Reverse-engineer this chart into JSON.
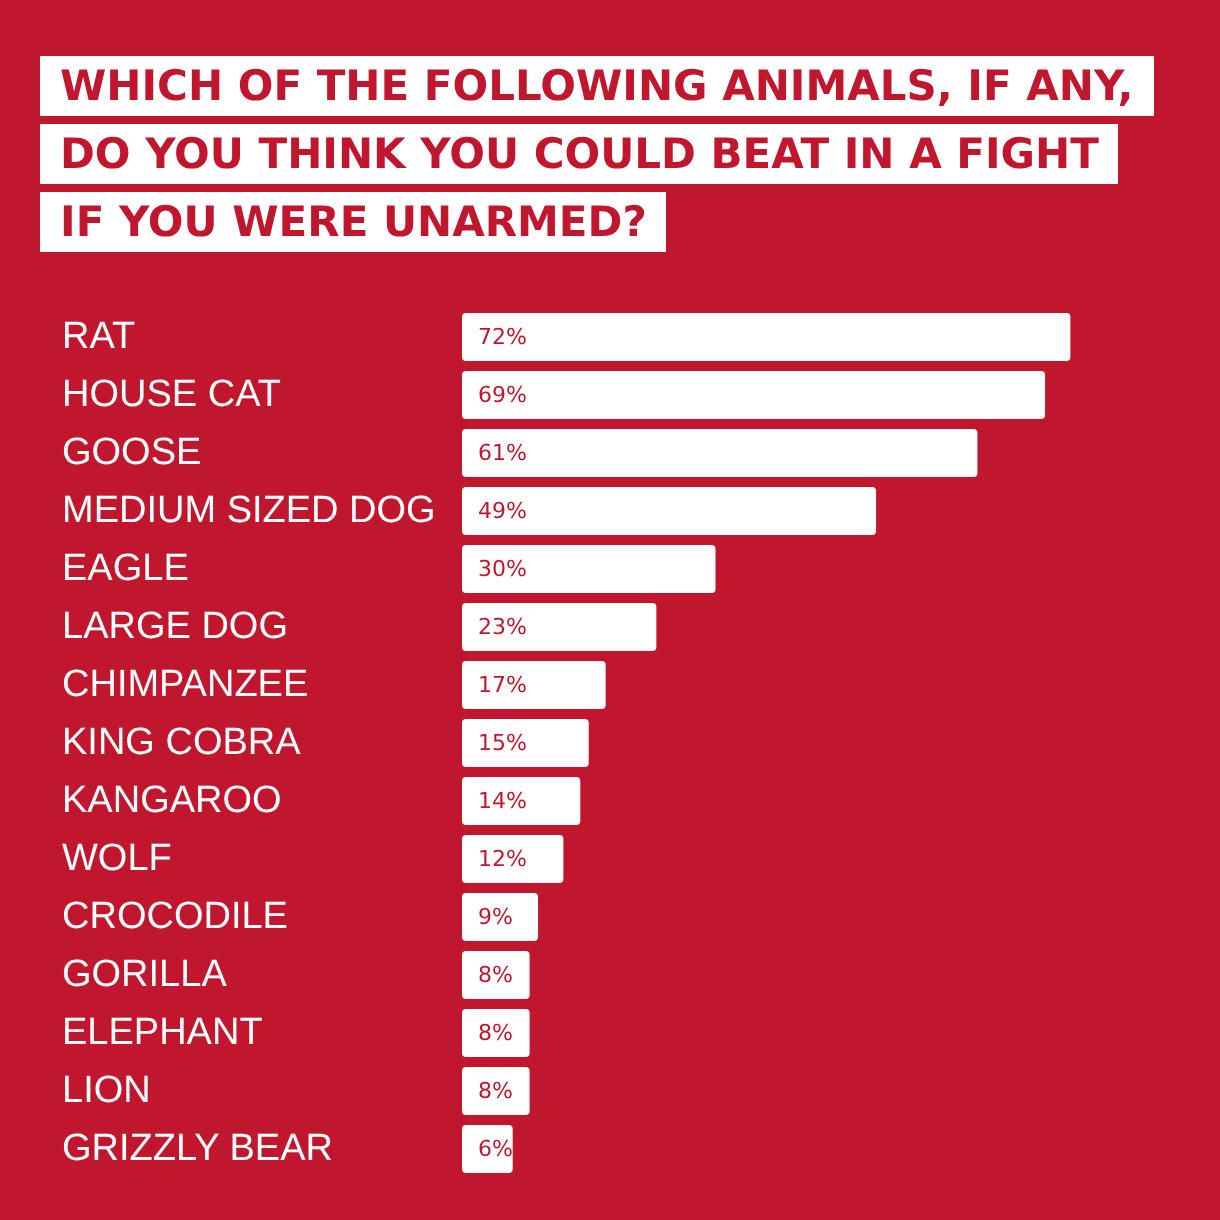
{
  "chart_data": {
    "type": "bar",
    "orientation": "horizontal",
    "title": "WHICH OF THE FOLLOWING ANIMALS, IF ANY,\nDO YOU THINK YOU COULD BEAT IN A FIGHT\nIF YOU WERE UNARMED?",
    "categories": [
      "RAT",
      "HOUSE CAT",
      "GOOSE",
      "MEDIUM SIZED DOG",
      "EAGLE",
      "LARGE DOG",
      "CHIMPANZEE",
      "KING COBRA",
      "KANGAROO",
      "WOLF",
      "CROCODILE",
      "GORILLA",
      "ELEPHANT",
      "LION",
      "GRIZZLY BEAR"
    ],
    "values": [
      72,
      69,
      61,
      49,
      30,
      23,
      17,
      15,
      14,
      12,
      9,
      8,
      8,
      8,
      6
    ],
    "value_labels": [
      "72%",
      "69%",
      "61%",
      "49%",
      "30%",
      "23%",
      "17%",
      "15%",
      "14%",
      "12%",
      "9%",
      "8%",
      "8%",
      "8%",
      "6%"
    ],
    "color": "#ffffff"
  }
}
